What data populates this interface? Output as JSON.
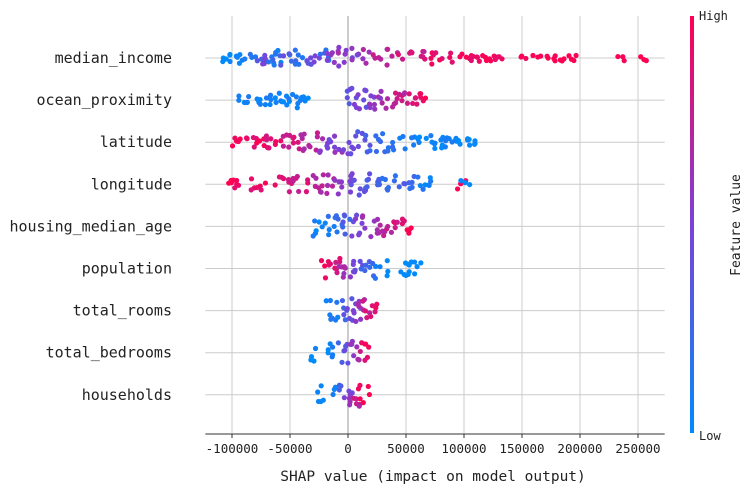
{
  "chart_data": {
    "type": "scatter",
    "subtype": "shap-beeswarm",
    "xlabel": "SHAP value (impact on model output)",
    "xlim": [
      -123000,
      273000
    ],
    "x_ticks": [
      -100000,
      -50000,
      0,
      50000,
      100000,
      150000,
      200000,
      250000
    ],
    "x_tick_labels": [
      "-100000",
      "-50000",
      "0",
      "50000",
      "100000",
      "150000",
      "200000",
      "250000"
    ],
    "features": [
      {
        "name": "median_income",
        "samples": [
          [
            -105000,
            0.0
          ],
          [
            -98000,
            0.1
          ],
          [
            -90000,
            0.05
          ],
          [
            -82000,
            0.15
          ],
          [
            -76000,
            0.3
          ],
          [
            -70000,
            0.5
          ],
          [
            -66000,
            0.2
          ],
          [
            -60000,
            0.1
          ],
          [
            -55000,
            0.35
          ],
          [
            -48000,
            0.25
          ],
          [
            -42000,
            0.15
          ],
          [
            -35000,
            0.4
          ],
          [
            -28000,
            0.45
          ],
          [
            -20000,
            0.2
          ],
          [
            -15000,
            0.55
          ],
          [
            -8000,
            0.6
          ],
          [
            0,
            0.5
          ],
          [
            6000,
            0.55
          ],
          [
            15000,
            0.65
          ],
          [
            25000,
            0.75
          ],
          [
            35000,
            0.7
          ],
          [
            45000,
            0.8
          ],
          [
            55000,
            0.85
          ],
          [
            65000,
            0.8
          ],
          [
            70000,
            0.9
          ],
          [
            78000,
            0.9
          ],
          [
            90000,
            0.95
          ],
          [
            100000,
            1.0
          ],
          [
            107000,
            0.95
          ],
          [
            115000,
            0.95
          ],
          [
            123000,
            1.0
          ],
          [
            130000,
            0.9
          ],
          [
            150000,
            1.0
          ],
          [
            163000,
            0.95
          ],
          [
            175000,
            1.0
          ],
          [
            185000,
            0.98
          ],
          [
            193000,
            1.0
          ],
          [
            235000,
            1.0
          ],
          [
            255000,
            1.0
          ]
        ]
      },
      {
        "name": "ocean_proximity",
        "samples": [
          [
            -92000,
            0.05
          ],
          [
            -85000,
            0.1
          ],
          [
            -78000,
            0.0
          ],
          [
            -72000,
            0.05
          ],
          [
            -66000,
            0.1
          ],
          [
            -60000,
            0.05
          ],
          [
            -54000,
            0.0
          ],
          [
            -48000,
            0.1
          ],
          [
            -42000,
            0.05
          ],
          [
            -37000,
            0.0
          ],
          [
            2000,
            0.4
          ],
          [
            8000,
            0.5
          ],
          [
            14000,
            0.45
          ],
          [
            20000,
            0.55
          ],
          [
            26000,
            0.6
          ],
          [
            32000,
            0.65
          ],
          [
            38000,
            0.7
          ],
          [
            44000,
            0.8
          ],
          [
            50000,
            0.75
          ],
          [
            56000,
            0.85
          ],
          [
            62000,
            0.9
          ],
          [
            66000,
            0.95
          ]
        ]
      },
      {
        "name": "latitude",
        "samples": [
          [
            -98000,
            1.0
          ],
          [
            -90000,
            0.95
          ],
          [
            -82000,
            0.9
          ],
          [
            -75000,
            0.95
          ],
          [
            -68000,
            0.85
          ],
          [
            -60000,
            0.9
          ],
          [
            -52000,
            0.8
          ],
          [
            -45000,
            0.85
          ],
          [
            -38000,
            0.7
          ],
          [
            -30000,
            0.75
          ],
          [
            -22000,
            0.6
          ],
          [
            -15000,
            0.5
          ],
          [
            -8000,
            0.55
          ],
          [
            0,
            0.45
          ],
          [
            6000,
            0.4
          ],
          [
            12000,
            0.35
          ],
          [
            18000,
            0.3
          ],
          [
            25000,
            0.25
          ],
          [
            32000,
            0.2
          ],
          [
            40000,
            0.15
          ],
          [
            48000,
            0.1
          ],
          [
            56000,
            0.1
          ],
          [
            64000,
            0.05
          ],
          [
            72000,
            0.05
          ],
          [
            80000,
            0.0
          ],
          [
            86000,
            0.05
          ],
          [
            94000,
            0.0
          ],
          [
            101000,
            0.0
          ],
          [
            107000,
            0.0
          ]
        ]
      },
      {
        "name": "longitude",
        "samples": [
          [
            -102000,
            1.0
          ],
          [
            -95000,
            0.95
          ],
          [
            -82000,
            0.9
          ],
          [
            -72000,
            0.95
          ],
          [
            -60000,
            0.85
          ],
          [
            -52000,
            0.9
          ],
          [
            -45000,
            0.8
          ],
          [
            -38000,
            0.85
          ],
          [
            -30000,
            0.75
          ],
          [
            -22000,
            0.7
          ],
          [
            -15000,
            0.65
          ],
          [
            -8000,
            0.55
          ],
          [
            0,
            0.5
          ],
          [
            6000,
            0.45
          ],
          [
            12000,
            0.4
          ],
          [
            18000,
            0.35
          ],
          [
            24000,
            0.3
          ],
          [
            30000,
            0.25
          ],
          [
            38000,
            0.2
          ],
          [
            46000,
            0.3
          ],
          [
            54000,
            0.2
          ],
          [
            62000,
            0.1
          ],
          [
            70000,
            0.05
          ],
          [
            98000,
            1.0
          ],
          [
            101000,
            0.0
          ]
        ]
      },
      {
        "name": "housing_median_age",
        "samples": [
          [
            -28000,
            0.05
          ],
          [
            -20000,
            0.1
          ],
          [
            -14000,
            0.15
          ],
          [
            -8000,
            0.2
          ],
          [
            -2000,
            0.3
          ],
          [
            4000,
            0.45
          ],
          [
            10000,
            0.5
          ],
          [
            16000,
            0.6
          ],
          [
            22000,
            0.65
          ],
          [
            28000,
            0.7
          ],
          [
            34000,
            0.75
          ],
          [
            40000,
            0.85
          ],
          [
            46000,
            0.9
          ],
          [
            53000,
            1.0
          ]
        ]
      },
      {
        "name": "population",
        "samples": [
          [
            -20000,
            0.95
          ],
          [
            -15000,
            0.9
          ],
          [
            -10000,
            0.85
          ],
          [
            -5000,
            0.7
          ],
          [
            0,
            0.6
          ],
          [
            5000,
            0.5
          ],
          [
            10000,
            0.4
          ],
          [
            15000,
            0.3
          ],
          [
            20000,
            0.2
          ],
          [
            26000,
            0.1
          ],
          [
            33000,
            0.05
          ],
          [
            48000,
            0.0
          ],
          [
            55000,
            0.0
          ],
          [
            59000,
            0.0
          ]
        ]
      },
      {
        "name": "total_rooms",
        "samples": [
          [
            -18000,
            0.05
          ],
          [
            -12000,
            0.1
          ],
          [
            -6000,
            0.2
          ],
          [
            0,
            0.4
          ],
          [
            4000,
            0.5
          ],
          [
            8000,
            0.55
          ],
          [
            12000,
            0.7
          ],
          [
            16000,
            0.8
          ],
          [
            22000,
            0.9
          ]
        ]
      },
      {
        "name": "total_bedrooms",
        "samples": [
          [
            -30000,
            0.0
          ],
          [
            -16000,
            0.05
          ],
          [
            -10000,
            0.15
          ],
          [
            -5000,
            0.25
          ],
          [
            0,
            0.4
          ],
          [
            5000,
            0.55
          ],
          [
            10000,
            0.7
          ],
          [
            14000,
            0.85
          ],
          [
            17000,
            0.95
          ]
        ]
      },
      {
        "name": "households",
        "samples": [
          [
            -24000,
            0.0
          ],
          [
            -10000,
            0.1
          ],
          [
            -5000,
            0.3
          ],
          [
            0,
            0.45
          ],
          [
            4000,
            0.6
          ],
          [
            8000,
            0.75
          ],
          [
            12000,
            0.9
          ],
          [
            16000,
            1.0
          ]
        ]
      }
    ],
    "colorbar": {
      "label": "Feature value",
      "high_label": "High",
      "low_label": "Low",
      "low_color": "#008bfb",
      "high_color": "#ff0052",
      "mid_color": "#7b42d8"
    }
  }
}
